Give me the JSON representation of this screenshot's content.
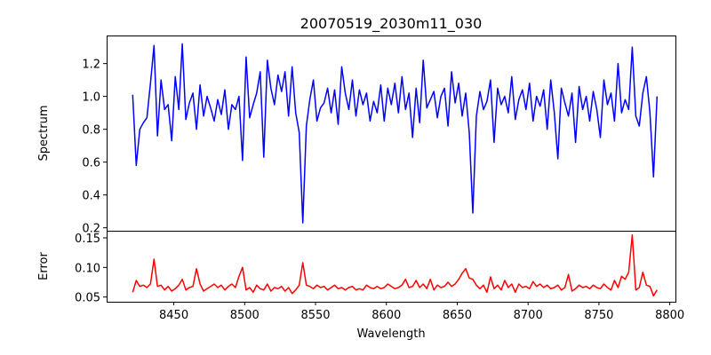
{
  "chart_data": [
    {
      "type": "line",
      "title": "20070519_2030m11_030",
      "xlabel": "",
      "ylabel": "Spectrum",
      "xlim": [
        8402.6,
        8804
      ],
      "ylim": [
        0.182,
        1.371
      ],
      "yticks": [
        0.2,
        0.4,
        0.6,
        0.8,
        1.0,
        1.2
      ],
      "ytick_labels": [
        "0.2",
        "0.4",
        "0.6",
        "0.8",
        "1.0",
        "1.2"
      ],
      "color": "#0000ff",
      "x_start": 8421,
      "x_step": 2.5,
      "values": [
        1.01,
        0.58,
        0.8,
        0.84,
        0.87,
        1.08,
        1.31,
        0.76,
        1.1,
        0.92,
        0.95,
        0.73,
        1.12,
        0.92,
        1.32,
        0.86,
        0.96,
        1.02,
        0.8,
        1.07,
        0.88,
        1.0,
        0.93,
        0.85,
        0.98,
        0.89,
        1.04,
        0.8,
        0.95,
        0.92,
        1.0,
        0.61,
        1.24,
        0.87,
        0.95,
        1.02,
        1.15,
        0.63,
        1.22,
        1.05,
        0.95,
        1.13,
        1.03,
        1.15,
        0.88,
        1.18,
        0.9,
        0.78,
        0.23,
        0.82,
        0.98,
        1.1,
        0.85,
        0.93,
        0.96,
        1.05,
        0.9,
        1.04,
        0.83,
        1.18,
        1.02,
        0.92,
        1.1,
        0.88,
        1.04,
        0.95,
        1.02,
        0.85,
        0.97,
        0.9,
        1.07,
        0.85,
        1.05,
        0.95,
        1.08,
        0.9,
        1.12,
        0.92,
        1.02,
        0.75,
        1.05,
        0.84,
        1.22,
        0.93,
        0.98,
        1.03,
        0.87,
        1.0,
        1.05,
        0.82,
        1.15,
        0.96,
        1.08,
        0.88,
        1.02,
        0.78,
        0.29,
        0.88,
        1.03,
        0.92,
        0.97,
        1.1,
        0.72,
        1.05,
        0.95,
        1.0,
        0.9,
        1.12,
        0.86,
        0.98,
        1.04,
        0.92,
        1.08,
        0.85,
        1.0,
        0.94,
        1.04,
        0.8,
        1.1,
        0.9,
        0.62,
        1.05,
        0.96,
        0.88,
        1.02,
        0.72,
        1.06,
        0.92,
        1.0,
        0.85,
        1.03,
        0.92,
        0.75,
        1.1,
        0.95,
        1.02,
        0.85,
        1.2,
        0.9,
        0.98,
        0.92,
        1.3,
        0.88,
        0.82,
        1.02,
        1.12,
        0.9,
        0.51,
        1.0
      ]
    },
    {
      "type": "line",
      "xlabel": "Wavelength",
      "ylabel": "Error",
      "xlim": [
        8402.6,
        8804
      ],
      "ylim": [
        0.042,
        0.162
      ],
      "yticks": [
        0.05,
        0.1,
        0.15
      ],
      "ytick_labels": [
        "0.05",
        "0.10",
        "0.15"
      ],
      "xticks": [
        8450,
        8500,
        8550,
        8600,
        8650,
        8700,
        8750,
        8800
      ],
      "xtick_labels": [
        "8450",
        "8500",
        "8550",
        "8600",
        "8650",
        "8700",
        "8750",
        "8800"
      ],
      "color": "#ff0000",
      "x_start": 8421,
      "x_step": 2.5,
      "values": [
        0.058,
        0.078,
        0.068,
        0.07,
        0.066,
        0.072,
        0.114,
        0.068,
        0.07,
        0.062,
        0.068,
        0.06,
        0.064,
        0.07,
        0.08,
        0.062,
        0.066,
        0.068,
        0.098,
        0.072,
        0.06,
        0.064,
        0.068,
        0.072,
        0.066,
        0.07,
        0.062,
        0.068,
        0.072,
        0.066,
        0.085,
        0.1,
        0.062,
        0.066,
        0.058,
        0.07,
        0.064,
        0.062,
        0.072,
        0.06,
        0.066,
        0.064,
        0.068,
        0.06,
        0.066,
        0.056,
        0.062,
        0.07,
        0.108,
        0.07,
        0.068,
        0.064,
        0.07,
        0.066,
        0.068,
        0.062,
        0.066,
        0.07,
        0.064,
        0.066,
        0.062,
        0.066,
        0.068,
        0.062,
        0.064,
        0.062,
        0.07,
        0.066,
        0.064,
        0.068,
        0.064,
        0.066,
        0.072,
        0.068,
        0.064,
        0.066,
        0.07,
        0.08,
        0.066,
        0.068,
        0.078,
        0.066,
        0.072,
        0.064,
        0.08,
        0.062,
        0.07,
        0.066,
        0.068,
        0.075,
        0.068,
        0.072,
        0.08,
        0.09,
        0.098,
        0.082,
        0.08,
        0.07,
        0.064,
        0.07,
        0.058,
        0.084,
        0.064,
        0.07,
        0.062,
        0.078,
        0.066,
        0.072,
        0.058,
        0.072,
        0.066,
        0.068,
        0.064,
        0.076,
        0.068,
        0.072,
        0.066,
        0.07,
        0.064,
        0.066,
        0.07,
        0.062,
        0.066,
        0.088,
        0.06,
        0.064,
        0.07,
        0.066,
        0.068,
        0.064,
        0.07,
        0.066,
        0.064,
        0.072,
        0.066,
        0.062,
        0.078,
        0.066,
        0.085,
        0.08,
        0.092,
        0.155,
        0.062,
        0.066,
        0.092,
        0.07,
        0.068,
        0.052,
        0.062
      ]
    }
  ]
}
